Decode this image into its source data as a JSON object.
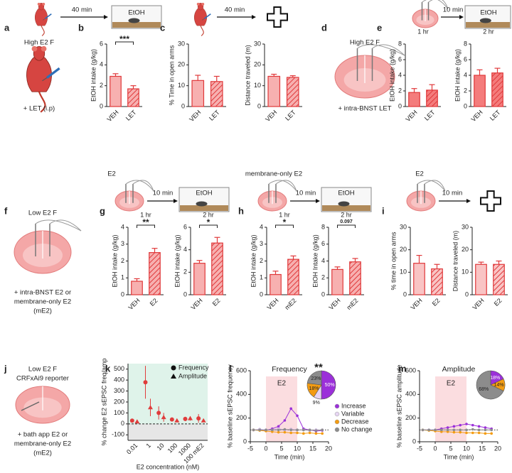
{
  "schematic": {
    "top": [
      "40 min",
      "EtOH",
      "40 min",
      "10 min",
      "EtOH"
    ],
    "middle": [
      "E2",
      "10 min",
      "EtOH",
      "membrane-only E2",
      "10 min",
      "EtOH",
      "E2",
      "10 min"
    ]
  },
  "panels": {
    "a": {
      "letter": "a",
      "lines": [
        "High E2 F",
        "+ LET (i.p)"
      ]
    },
    "d": {
      "letter": "d",
      "lines": [
        "High E2 F",
        "+ intra-BNST LET"
      ]
    },
    "f": {
      "letter": "f",
      "lines": [
        "Low E2 F",
        "+ intra-BNST E2 or",
        "membrane-only E2",
        "(mE2)"
      ]
    },
    "j": {
      "letter": "j",
      "lines": [
        "Low E2 F",
        "CRFxAi9 reporter",
        "+ bath app E2 or",
        "membrane-only E2",
        "(mE2)"
      ]
    }
  },
  "chart_data": [
    {
      "type": "bar",
      "panel": "b",
      "y_label": "EtOH intake (g/kg)",
      "categories": [
        "VEH",
        "LET"
      ],
      "values": [
        2.9,
        1.7
      ],
      "errors": [
        0.25,
        0.3
      ],
      "ylim": [
        0,
        6
      ],
      "yticks": [
        0,
        2,
        4,
        6
      ],
      "color": "#f7b0b0",
      "edge_color": "#e0383a",
      "significance": "***"
    },
    {
      "type": "bar",
      "panel": "c",
      "y_label": "% Time in open arms",
      "categories": [
        "VEH",
        "LET"
      ],
      "values": [
        12.5,
        12
      ],
      "errors": [
        2.5,
        2.5
      ],
      "ylim": [
        0,
        30
      ],
      "yticks": [
        0,
        10,
        20,
        30
      ],
      "color": "#f7b0b0",
      "edge_color": "#e0383a"
    },
    {
      "type": "bar",
      "y_label": "Distance traveled (m)",
      "categories": [
        "VEH",
        "LET"
      ],
      "values": [
        14.5,
        14
      ],
      "errors": [
        1,
        0.8
      ],
      "ylim": [
        0,
        30
      ],
      "yticks": [
        0,
        10,
        20,
        30
      ],
      "color": "#f7b0b0",
      "edge_color": "#e0383a"
    },
    {
      "type": "bar",
      "panel": "e",
      "title": "1 hr",
      "y_label": "EtOH intake (g/kg)",
      "categories": [
        "VEH",
        "LET"
      ],
      "values": [
        1.8,
        2.1
      ],
      "errors": [
        0.5,
        0.7
      ],
      "ylim": [
        0,
        8
      ],
      "yticks": [
        0,
        2,
        4,
        6,
        8
      ],
      "color": "#f47c7c",
      "edge_color": "#e0383a"
    },
    {
      "type": "bar",
      "title": "2 hr",
      "y_label": "EtOH intake (g/kg)",
      "categories": [
        "VEH",
        "LET"
      ],
      "values": [
        4,
        4.3
      ],
      "errors": [
        0.7,
        0.6
      ],
      "ylim": [
        0,
        8
      ],
      "yticks": [
        0,
        2,
        4,
        6,
        8
      ],
      "color": "#f47c7c",
      "edge_color": "#e0383a"
    },
    {
      "type": "bar",
      "panel": "g",
      "title": "1 hr",
      "y_label": "EtOH intake (g/kg)",
      "categories": [
        "VEH",
        "E2"
      ],
      "values": [
        0.8,
        2.5
      ],
      "errors": [
        0.15,
        0.25
      ],
      "ylim": [
        0,
        4
      ],
      "yticks": [
        0,
        1,
        2,
        3,
        4
      ],
      "color": "#f7b0b0",
      "edge_color": "#e0383a",
      "significance": "**"
    },
    {
      "type": "bar",
      "title": "2 hr",
      "y_label": "EtOH intake (g/kg)",
      "categories": [
        "VEH",
        "E2"
      ],
      "values": [
        2.8,
        4.6
      ],
      "errors": [
        0.25,
        0.5
      ],
      "ylim": [
        0,
        6
      ],
      "yticks": [
        0,
        2,
        4,
        6
      ],
      "color": "#f7b0b0",
      "edge_color": "#e0383a",
      "significance": "*"
    },
    {
      "type": "bar",
      "panel": "h",
      "title": "1 hr",
      "y_label": "EtOH intake (g/kg)",
      "categories": [
        "VEH",
        "mE2"
      ],
      "values": [
        1.2,
        2.1
      ],
      "errors": [
        0.2,
        0.2
      ],
      "ylim": [
        0,
        4
      ],
      "yticks": [
        0,
        1,
        2,
        3,
        4
      ],
      "color": "#f7b0b0",
      "edge_color": "#e0383a",
      "significance": "*"
    },
    {
      "type": "bar",
      "title": "2 hr",
      "y_label": "EtOH Intake (g/kg)",
      "categories": [
        "VEH",
        "mE2"
      ],
      "values": [
        3,
        3.9
      ],
      "errors": [
        0.3,
        0.4
      ],
      "ylim": [
        0,
        8
      ],
      "yticks": [
        0,
        2,
        4,
        6,
        8
      ],
      "color": "#f7b0b0",
      "edge_color": "#e0383a",
      "significance": "0.097"
    },
    {
      "type": "bar",
      "panel": "i",
      "y_label": "% time in open arms",
      "categories": [
        "VEH",
        "E2"
      ],
      "values": [
        14,
        11.5
      ],
      "errors": [
        3.5,
        2
      ],
      "ylim": [
        0,
        30
      ],
      "yticks": [
        0,
        10,
        20,
        30
      ],
      "color": "#f9c4c4",
      "edge_color": "#e0383a"
    },
    {
      "type": "bar",
      "y_label": "Distance traveled (m)",
      "categories": [
        "VEH",
        "E2"
      ],
      "values": [
        13.5,
        13.5
      ],
      "errors": [
        1,
        1.5
      ],
      "ylim": [
        0,
        30
      ],
      "yticks": [
        0,
        10,
        20,
        30
      ],
      "color": "#f9c4c4",
      "edge_color": "#e0383a"
    },
    {
      "type": "scatter",
      "panel": "k",
      "y_label": "% change E2 sEPSC freq/amp",
      "x_label": "E2 concentration (nM)",
      "categories": [
        "0.01",
        "1",
        "10",
        "100",
        "1000",
        "100 mE2"
      ],
      "series": [
        {
          "name": "Frequency",
          "marker": "circle",
          "color": "#e03c3c",
          "values": [
            30,
            380,
            100,
            40,
            45,
            50
          ],
          "errors": [
            10,
            150,
            60,
            15,
            20,
            40
          ]
        },
        {
          "name": "Amplitude",
          "marker": "triangle",
          "color": "#e03c3c",
          "values": [
            20,
            150,
            60,
            30,
            50,
            30
          ],
          "errors": [
            5,
            80,
            40,
            10,
            20,
            15
          ]
        }
      ],
      "ylim": [
        -150,
        550
      ],
      "yticks": [
        -100,
        0,
        100,
        200,
        300,
        400,
        500
      ],
      "legend": true
    },
    {
      "type": "line",
      "panel": "l",
      "title": "Frequency",
      "significance": "**",
      "y_label": "% baseline sEPSC frequency",
      "x_label": "Time (min)",
      "x": [
        -4,
        -2,
        0,
        2,
        4,
        6,
        8,
        10,
        12,
        14,
        16,
        18
      ],
      "series": [
        {
          "name": "Increase",
          "color": "#9b30d9",
          "values": [
            100,
            100,
            95,
            110,
            130,
            180,
            280,
            220,
            110,
            100,
            90,
            95
          ]
        },
        {
          "name": "Variable",
          "color": "#e6d5f2",
          "values": [
            100,
            105,
            100,
            100,
            110,
            100,
            105,
            100,
            100,
            95,
            100,
            100
          ]
        },
        {
          "name": "Decrease",
          "color": "#f39c12",
          "values": [
            100,
            95,
            90,
            85,
            80,
            80,
            75,
            75,
            70,
            75,
            70,
            70
          ]
        },
        {
          "name": "No change",
          "color": "#8c8c8c",
          "values": [
            100,
            100,
            100,
            100,
            100,
            105,
            100,
            100,
            100,
            100,
            95,
            100
          ]
        }
      ],
      "pie": {
        "values": [
          50,
          9,
          18,
          23
        ],
        "value_labels": [
          "50%",
          "9%",
          "18%",
          "23%"
        ]
      },
      "shade": {
        "label": "E2",
        "range": [
          0,
          10
        ]
      },
      "baseline": 100,
      "xlim": [
        -5,
        20
      ],
      "xticks": [
        -5,
        0,
        5,
        10,
        15,
        20
      ],
      "ylim": [
        0,
        600
      ],
      "yticks": [
        0,
        200,
        400,
        600
      ],
      "legend": true
    },
    {
      "type": "line",
      "panel": "m",
      "title": "Amplitude",
      "y_label": "% baseline sEPSC amplitude",
      "x_label": "Time (min)",
      "x": [
        -4,
        -2,
        0,
        2,
        4,
        6,
        8,
        10,
        12,
        14,
        16,
        18
      ],
      "series": [
        {
          "name": "Increase",
          "color": "#9b30d9",
          "values": [
            100,
            100,
            100,
            110,
            120,
            130,
            140,
            150,
            140,
            130,
            120,
            110
          ]
        },
        {
          "name": "Decrease",
          "color": "#f39c12",
          "values": [
            100,
            95,
            90,
            85,
            85,
            80,
            80,
            75,
            75,
            75,
            70,
            70
          ]
        },
        {
          "name": "No change",
          "color": "#8c8c8c",
          "values": [
            100,
            100,
            100,
            100,
            100,
            100,
            100,
            100,
            105,
            100,
            100,
            100
          ]
        }
      ],
      "pie": {
        "values": [
          18,
          14,
          68
        ],
        "value_labels": [
          "18%",
          "14%",
          "68%"
        ]
      },
      "shade": {
        "label": "E2",
        "range": [
          0,
          10
        ]
      },
      "baseline": 100,
      "xlim": [
        -5,
        20
      ],
      "xticks": [
        -5,
        0,
        5,
        10,
        15,
        20
      ],
      "ylim": [
        0,
        600
      ],
      "yticks": [
        0,
        200,
        400,
        600
      ],
      "legend": false
    }
  ]
}
